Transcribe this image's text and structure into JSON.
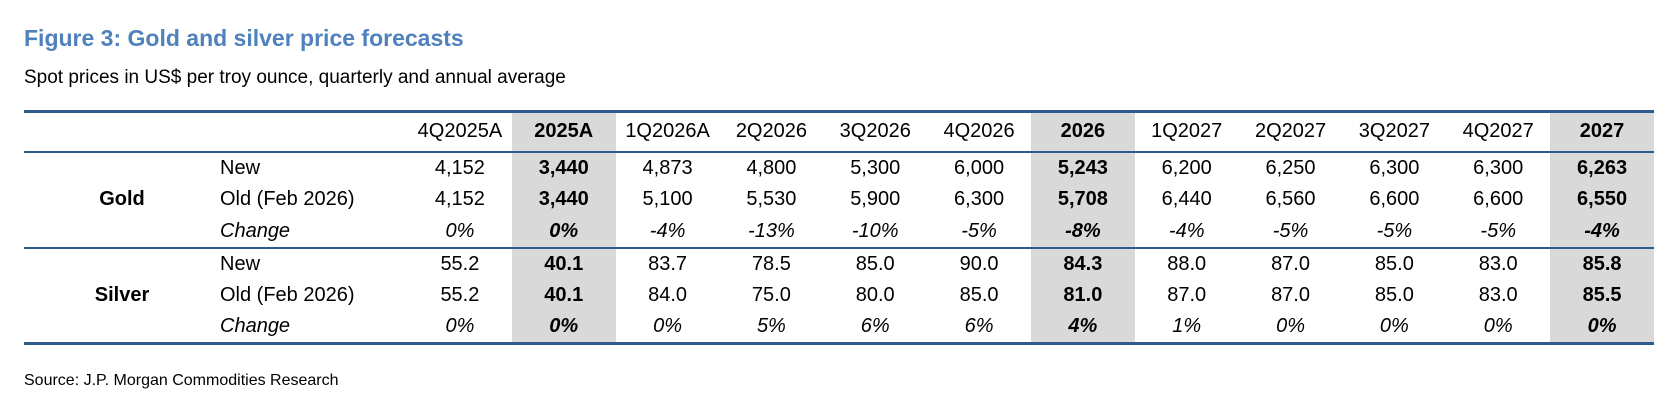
{
  "header": {
    "title": "Figure 3: Gold and silver price forecasts",
    "subtitle": "Spot prices in US$ per troy ounce, quarterly and annual average"
  },
  "table": {
    "columns": [
      "4Q2025A",
      "2025A",
      "1Q2026A",
      "2Q2026",
      "3Q2026",
      "4Q2026",
      "2026",
      "1Q2027",
      "2Q2027",
      "3Q2027",
      "4Q2027",
      "2027"
    ],
    "groups": [
      {
        "name": "Gold",
        "rows": [
          {
            "label": "New",
            "values": [
              "4,152",
              "3,440",
              "4,873",
              "4,800",
              "5,300",
              "6,000",
              "5,243",
              "6,200",
              "6,250",
              "6,300",
              "6,300",
              "6,263"
            ]
          },
          {
            "label": "Old (Feb 2026)",
            "values": [
              "4,152",
              "3,440",
              "5,100",
              "5,530",
              "5,900",
              "6,300",
              "5,708",
              "6,440",
              "6,560",
              "6,600",
              "6,600",
              "6,550"
            ]
          },
          {
            "label": "Change",
            "values": [
              "0%",
              "0%",
              "-4%",
              "-13%",
              "-10%",
              "-5%",
              "-8%",
              "-4%",
              "-5%",
              "-5%",
              "-5%",
              "-4%"
            ]
          }
        ]
      },
      {
        "name": "Silver",
        "rows": [
          {
            "label": "New",
            "values": [
              "55.2",
              "40.1",
              "83.7",
              "78.5",
              "85.0",
              "90.0",
              "84.3",
              "88.0",
              "87.0",
              "85.0",
              "83.0",
              "85.8"
            ]
          },
          {
            "label": "Old (Feb 2026)",
            "values": [
              "55.2",
              "40.1",
              "84.0",
              "75.0",
              "80.0",
              "85.0",
              "81.0",
              "87.0",
              "87.0",
              "85.0",
              "83.0",
              "85.5"
            ]
          },
          {
            "label": "Change",
            "values": [
              "0%",
              "0%",
              "0%",
              "5%",
              "6%",
              "6%",
              "4%",
              "1%",
              "0%",
              "0%",
              "0%",
              "0%"
            ]
          }
        ]
      }
    ]
  },
  "footer": {
    "source": "Source: J.P. Morgan Commodities Research"
  }
}
